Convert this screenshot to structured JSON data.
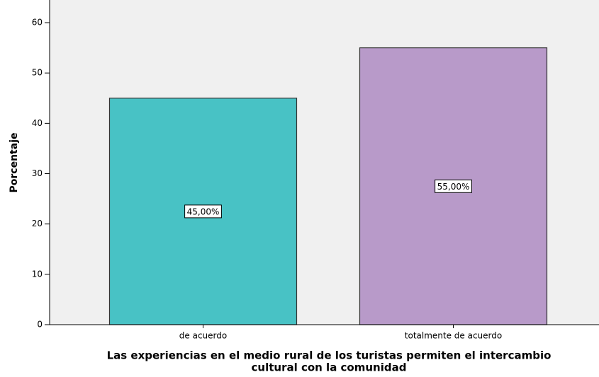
{
  "chart_data": {
    "type": "bar",
    "y_label": "Porcentaje",
    "x_label": [
      "Las experiencias en el medio rural de los turistas permiten el intercambio",
      "cultural con la comunidad"
    ],
    "categories": [
      "de acuerdo",
      "totalmente de acuerdo"
    ],
    "values": [
      45,
      55
    ],
    "value_labels": [
      "45,00%",
      "55,00%"
    ],
    "colors": [
      "#48c2c5",
      "#b89ac9"
    ],
    "ylim": [
      0,
      64.5
    ],
    "yticks": [
      0,
      10,
      20,
      30,
      40,
      50,
      60
    ],
    "grid": false
  }
}
